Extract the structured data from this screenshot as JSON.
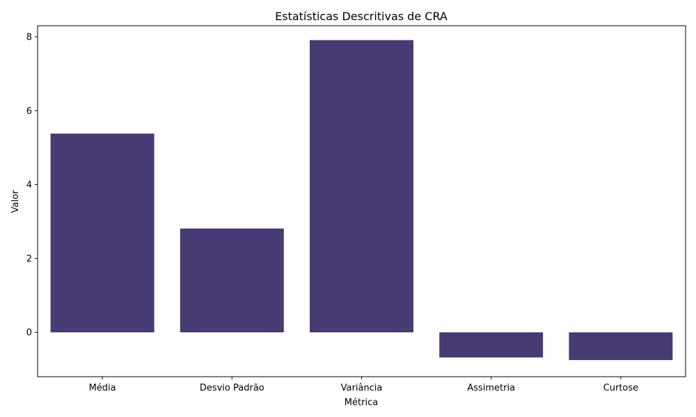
{
  "chart_data": {
    "type": "bar",
    "title": "Estatísticas Descritivas de CRA",
    "xlabel": "Métrica",
    "ylabel": "Valor",
    "categories": [
      "Média",
      "Desvio Padrão",
      "Variância",
      "Assimetria",
      "Curtose"
    ],
    "values": [
      5.38,
      2.81,
      7.91,
      -0.68,
      -0.75
    ],
    "ylim": [
      -1.2,
      8.3
    ],
    "yticks": [
      0,
      2,
      4,
      6,
      8
    ],
    "ytick_labels": [
      "0",
      "2",
      "4",
      "6",
      "8"
    ],
    "grid": false,
    "legend": "none",
    "bar_color": "#483a72"
  }
}
